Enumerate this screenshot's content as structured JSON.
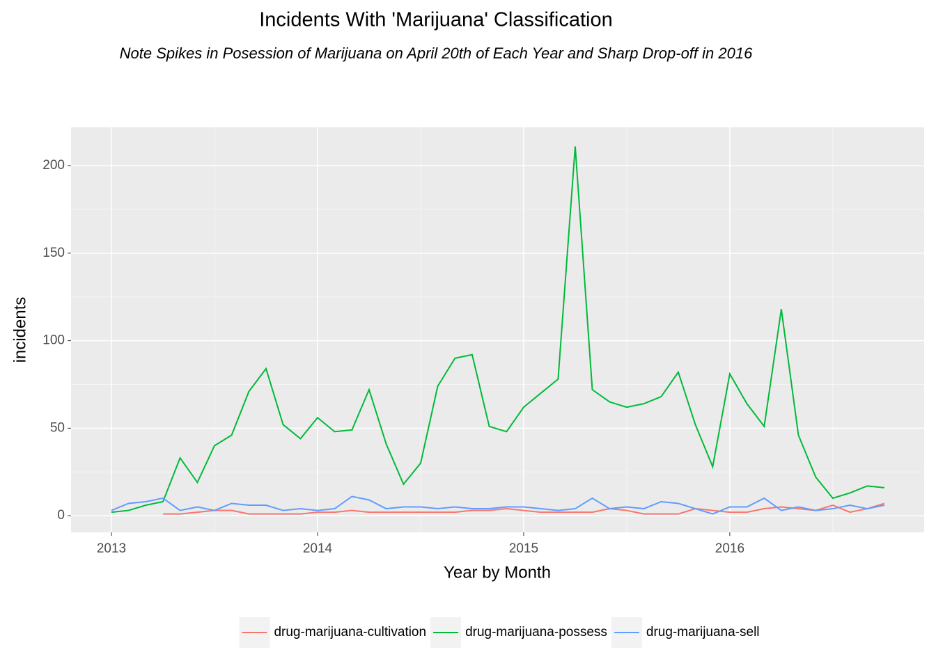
{
  "chart_data": {
    "type": "line",
    "title": "Incidents With 'Marijuana' Classification",
    "subtitle": "Note Spikes in Posession of Marijuana on April 20th of Each Year and Sharp Drop-off in 2016",
    "x_label": "Year by Month",
    "y_label": "incidents",
    "x": [
      2013,
      2013.083,
      2013.167,
      2013.25,
      2013.333,
      2013.417,
      2013.5,
      2013.583,
      2013.667,
      2013.75,
      2013.833,
      2013.917,
      2014,
      2014.083,
      2014.167,
      2014.25,
      2014.333,
      2014.417,
      2014.5,
      2014.583,
      2014.667,
      2014.75,
      2014.833,
      2014.917,
      2015,
      2015.083,
      2015.167,
      2015.25,
      2015.333,
      2015.417,
      2015.5,
      2015.583,
      2015.667,
      2015.75,
      2015.833,
      2015.917,
      2016,
      2016.083,
      2016.167,
      2016.25,
      2016.333,
      2016.417,
      2016.5,
      2016.583,
      2016.667,
      2016.75
    ],
    "series": [
      {
        "name": "drug-marijuana-cultivation",
        "color": "#F8766D",
        "values": [
          null,
          null,
          null,
          1,
          1,
          2,
          3,
          3,
          1,
          1,
          1,
          1,
          2,
          2,
          3,
          2,
          2,
          2,
          2,
          2,
          2,
          3,
          3,
          4,
          3,
          2,
          2,
          2,
          2,
          4,
          3,
          1,
          1,
          1,
          4,
          3,
          2,
          2,
          4,
          5,
          4,
          3,
          6,
          2,
          4,
          7
        ]
      },
      {
        "name": "drug-marijuana-possess",
        "color": "#00BA38",
        "values": [
          2,
          3,
          6,
          8,
          33,
          19,
          40,
          46,
          71,
          84,
          52,
          44,
          56,
          48,
          49,
          72,
          41,
          18,
          30,
          74,
          90,
          92,
          51,
          48,
          62,
          70,
          78,
          211,
          72,
          65,
          62,
          64,
          68,
          82,
          52,
          28,
          81,
          64,
          51,
          118,
          46,
          22,
          10,
          13,
          17,
          16
        ]
      },
      {
        "name": "drug-marijuana-sell",
        "color": "#619CFF",
        "values": [
          3,
          7,
          8,
          10,
          3,
          5,
          3,
          7,
          6,
          6,
          3,
          4,
          3,
          4,
          11,
          9,
          4,
          5,
          5,
          4,
          5,
          4,
          4,
          5,
          5,
          4,
          3,
          4,
          10,
          4,
          5,
          4,
          8,
          7,
          4,
          1,
          5,
          5,
          10,
          3,
          5,
          3,
          4,
          6,
          4,
          6
        ]
      }
    ],
    "xlim": [
      2012.804,
      2016.943
    ],
    "xticks": [
      2013,
      2014,
      2015,
      2016
    ],
    "ylim": [
      -9.5,
      221.9
    ],
    "yticks": [
      0,
      50,
      100,
      150,
      200
    ],
    "grid": true,
    "legend": "bottom"
  }
}
